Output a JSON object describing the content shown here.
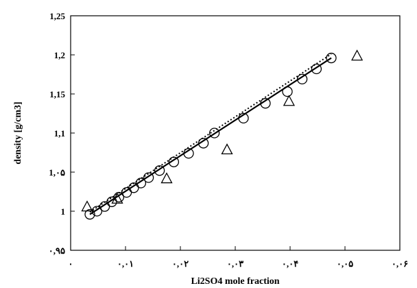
{
  "chart_data": {
    "type": "scatter",
    "title": "",
    "xlabel": "Li2SO4 mole fraction",
    "ylabel": "density [g/cm3]",
    "xlim": [
      0,
      0.06
    ],
    "ylim": [
      0.95,
      1.25
    ],
    "grid": false,
    "legend": "none",
    "x_tick_labels": [
      "٠",
      "٠,٠١",
      "٠,٠٢",
      "٠,٠٣",
      "٠,٠۴",
      "٠,٠۵",
      "٠,٠۶"
    ],
    "y_tick_labels": [
      "٠,٩۵",
      "1",
      "1,٠۵",
      "1,1",
      "1,15",
      "1,2",
      "1,25"
    ],
    "x_ticks": [
      0,
      0.01,
      0.02,
      0.03,
      0.04,
      0.05,
      0.06
    ],
    "y_ticks": [
      0.95,
      1.0,
      1.05,
      1.1,
      1.15,
      1.2,
      1.25
    ],
    "series": [
      {
        "marker": "circle",
        "color": "#000000",
        "x": [
          0.0035,
          0.0048,
          0.0062,
          0.0075,
          0.0088,
          0.0102,
          0.0115,
          0.0128,
          0.0142,
          0.0162,
          0.0188,
          0.0215,
          0.0242,
          0.0262,
          0.0315,
          0.0355,
          0.0395,
          0.0422,
          0.0448,
          0.0475
        ],
        "y": [
          0.996,
          1.0,
          1.006,
          1.012,
          1.018,
          1.024,
          1.03,
          1.036,
          1.043,
          1.052,
          1.063,
          1.074,
          1.087,
          1.1,
          1.119,
          1.138,
          1.153,
          1.169,
          1.182,
          1.196
        ]
      },
      {
        "marker": "triangle",
        "color": "#000000",
        "x": [
          0.003,
          0.0085,
          0.0175,
          0.0285,
          0.0398,
          0.0522
        ],
        "y": [
          1.005,
          1.015,
          1.041,
          1.078,
          1.14,
          1.198
        ]
      }
    ],
    "lines": [
      {
        "style": "solid",
        "x": [
          0.0035,
          0.0475
        ],
        "y": [
          0.996,
          1.196
        ]
      },
      {
        "style": "dotted",
        "x": [
          0.0035,
          0.0475
        ],
        "y": [
          0.999,
          1.201
        ]
      }
    ]
  }
}
